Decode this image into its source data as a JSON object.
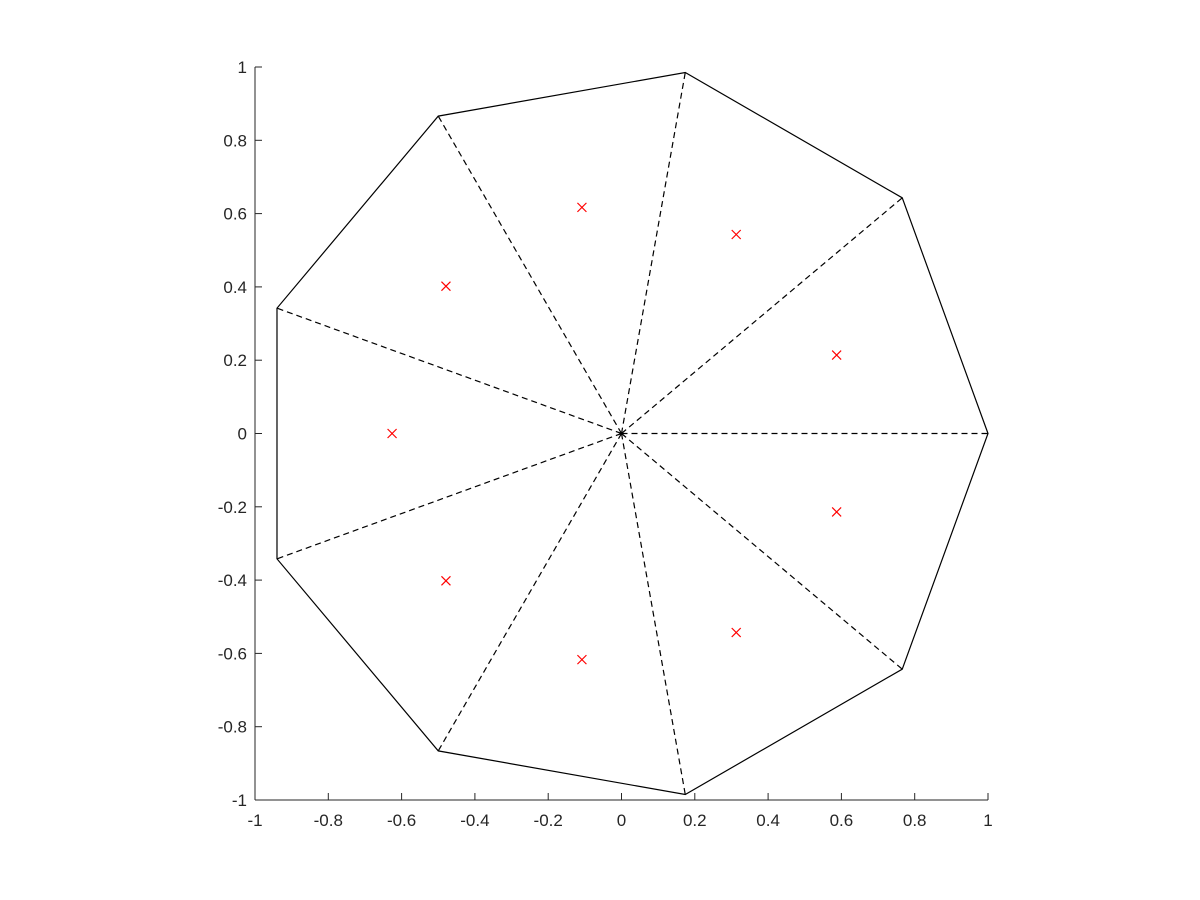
{
  "chart_data": {
    "type": "scatter",
    "title": "",
    "xlabel": "",
    "ylabel": "",
    "xlim": [
      -1,
      1
    ],
    "ylim": [
      -1,
      1
    ],
    "xticks": [
      -1,
      -0.8,
      -0.6,
      -0.4,
      -0.2,
      0,
      0.2,
      0.4,
      0.6,
      0.8,
      1
    ],
    "yticks": [
      -1,
      -0.8,
      -0.6,
      -0.4,
      -0.2,
      0,
      0.2,
      0.4,
      0.6,
      0.8,
      1
    ],
    "xtick_labels": [
      "-1",
      "-0.8",
      "-0.6",
      "-0.4",
      "-0.2",
      "0",
      "0.2",
      "0.4",
      "0.6",
      "0.8",
      "1"
    ],
    "ytick_labels": [
      "-1",
      "-0.8",
      "-0.6",
      "-0.4",
      "-0.2",
      "0",
      "0.2",
      "0.4",
      "0.6",
      "0.8",
      "1"
    ],
    "grid": false,
    "aspect": "equal",
    "box": false,
    "polygon": {
      "center": [
        0,
        0
      ],
      "color": "#000000",
      "vertices": [
        [
          1.0,
          0.0
        ],
        [
          0.766,
          0.643
        ],
        [
          0.174,
          0.985
        ],
        [
          -0.5,
          0.866
        ],
        [
          -0.94,
          0.342
        ],
        [
          -0.94,
          -0.342
        ],
        [
          -0.5,
          -0.866
        ],
        [
          0.174,
          -0.985
        ],
        [
          0.766,
          -0.643
        ]
      ]
    },
    "spokes": {
      "style": "dashed",
      "color": "#000000",
      "from": [
        0,
        0
      ]
    },
    "markers": {
      "symbol": "x",
      "color": "#ff0000",
      "points": [
        [
          0.587,
          0.214
        ],
        [
          0.313,
          0.543
        ],
        [
          -0.108,
          0.617
        ],
        [
          -0.479,
          0.402
        ],
        [
          -0.626,
          0.0
        ],
        [
          -0.479,
          -0.402
        ],
        [
          -0.108,
          -0.617
        ],
        [
          0.313,
          -0.543
        ],
        [
          0.587,
          -0.214
        ]
      ]
    }
  }
}
